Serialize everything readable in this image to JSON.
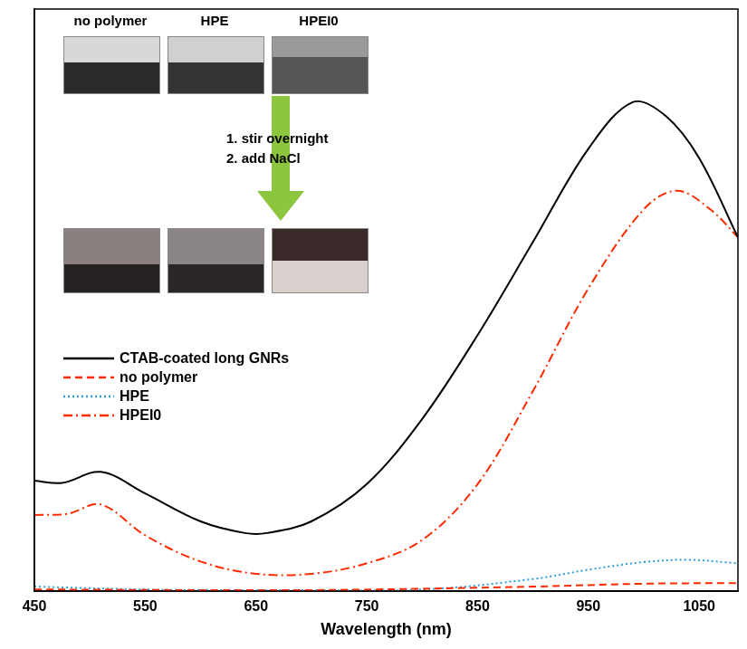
{
  "chart_data": {
    "type": "line",
    "x_label": "Wavelength (nm)",
    "xlim": [
      450,
      1085
    ],
    "xticks": [
      450,
      550,
      650,
      750,
      850,
      950,
      1050
    ],
    "ylim": [
      0,
      1
    ],
    "tick_labels": "x",
    "grid": false,
    "legend": "center left",
    "annotations": [
      "no polymer",
      "HPE",
      "HPEI0",
      "1. stir overnight",
      "2. add NaCl"
    ],
    "series": [
      {
        "name": "CTAB-coated long GNRs",
        "color": "#000000",
        "line_style": "solid",
        "x": [
          450,
          475,
          510,
          550,
          600,
          640,
          660,
          700,
          750,
          800,
          850,
          900,
          950,
          990,
          1020,
          1050,
          1085
        ],
        "values": [
          0.19,
          0.186,
          0.205,
          0.168,
          0.12,
          0.1,
          0.1,
          0.12,
          0.184,
          0.296,
          0.44,
          0.6,
          0.76,
          0.84,
          0.816,
          0.744,
          0.608
        ]
      },
      {
        "name": "no polymer",
        "color": "#ff2a00",
        "line_style": "dashed",
        "x": [
          450,
          700,
          900,
          1000,
          1085
        ],
        "values": [
          0.003,
          0.002,
          0.008,
          0.013,
          0.014
        ]
      },
      {
        "name": "HPE",
        "color": "#2e9fd8",
        "line_style": "dotted",
        "x": [
          450,
          550,
          650,
          800,
          900,
          950,
          1000,
          1040,
          1085
        ],
        "values": [
          0.008,
          0.003,
          0.002,
          0.003,
          0.021,
          0.037,
          0.05,
          0.054,
          0.048
        ]
      },
      {
        "name": "HPEI0",
        "color": "#ff2a00",
        "line_style": "dashdot",
        "x": [
          450,
          480,
          510,
          550,
          600,
          650,
          700,
          750,
          800,
          850,
          900,
          950,
          1000,
          1030,
          1060,
          1085
        ],
        "values": [
          0.131,
          0.133,
          0.149,
          0.096,
          0.051,
          0.03,
          0.03,
          0.048,
          0.088,
          0.184,
          0.344,
          0.52,
          0.656,
          0.688,
          0.656,
          0.608
        ]
      }
    ]
  }
}
